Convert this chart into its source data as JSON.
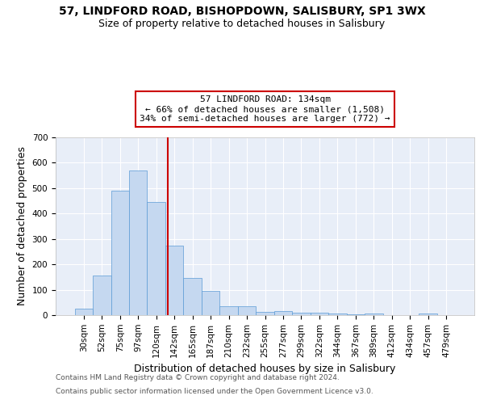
{
  "title_line1": "57, LINDFORD ROAD, BISHOPDOWN, SALISBURY, SP1 3WX",
  "title_line2": "Size of property relative to detached houses in Salisbury",
  "xlabel": "Distribution of detached houses by size in Salisbury",
  "ylabel": "Number of detached properties",
  "categories": [
    "30sqm",
    "52sqm",
    "75sqm",
    "97sqm",
    "120sqm",
    "142sqm",
    "165sqm",
    "187sqm",
    "210sqm",
    "232sqm",
    "255sqm",
    "277sqm",
    "299sqm",
    "322sqm",
    "344sqm",
    "367sqm",
    "389sqm",
    "412sqm",
    "434sqm",
    "457sqm",
    "479sqm"
  ],
  "values": [
    25,
    155,
    490,
    570,
    445,
    275,
    145,
    96,
    35,
    35,
    13,
    15,
    11,
    8,
    6,
    4,
    6,
    0,
    0,
    6,
    0
  ],
  "bar_color": "#c5d8f0",
  "bar_edge_color": "#5b9bd5",
  "vline_color": "#cc0000",
  "annotation_text": "57 LINDFORD ROAD: 134sqm\n← 66% of detached houses are smaller (1,508)\n34% of semi-detached houses are larger (772) →",
  "annotation_box_color": "#ffffff",
  "annotation_box_edge": "#cc0000",
  "ylim": [
    0,
    700
  ],
  "yticks": [
    0,
    100,
    200,
    300,
    400,
    500,
    600,
    700
  ],
  "background_color": "#e8eef8",
  "grid_color": "#ffffff",
  "footer_line1": "Contains HM Land Registry data © Crown copyright and database right 2024.",
  "footer_line2": "Contains public sector information licensed under the Open Government Licence v3.0.",
  "title_fontsize": 10,
  "subtitle_fontsize": 9,
  "axis_label_fontsize": 9,
  "tick_fontsize": 7.5,
  "annotation_fontsize": 8,
  "footer_fontsize": 6.5
}
